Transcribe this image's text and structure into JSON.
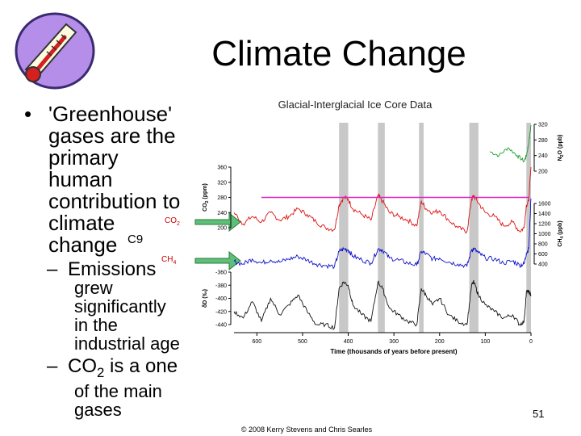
{
  "slide": {
    "title": "Climate Change",
    "bullet_1_line_1": "'Greenhouse'",
    "bullet_1_line_2": "gases are the",
    "bullet_1_line_3": "primary",
    "bullet_1_line_4": "human",
    "bullet_1_line_5": "contribution to",
    "bullet_1_line_6": "climate",
    "bullet_1_line_7": "change",
    "c9_label": "C9",
    "co2_label": "CO",
    "co2_sub": "2",
    "ch4_label": "CH",
    "ch4_sub": "4",
    "sub_1_line_1": "Emissions",
    "sub_1_line_2": "grew",
    "sub_1_line_3": "significantly",
    "sub_1_line_4": "in the",
    "sub_1_line_5": "industrial age",
    "sub_2_line_1": "CO",
    "sub_2_sub": "2",
    "sub_2_line_1b": " is a one",
    "sub_2_line_2": "of the main",
    "sub_2_line_3": "gases",
    "slide_number": "51",
    "copyright": "© 2008 Kerry Stevens and Chris Searles",
    "colors": {
      "arrow": "#5fbf7a",
      "pink": "#e020c0",
      "n2o": "#1a9a30",
      "co2": "#dd1111",
      "ch4": "#1010cc",
      "dD": "#111111",
      "band": "#c8c8c8"
    }
  },
  "chart_data": {
    "type": "line",
    "title": "Glacial-Interglacial Ice Core Data",
    "xlabel": "Time (thousands of years before present)",
    "x_ticks": [
      600,
      500,
      400,
      300,
      200,
      100,
      0
    ],
    "xlim": [
      650,
      0
    ],
    "interglacial_bands_kyr": [
      [
        420,
        400
      ],
      [
        335,
        320
      ],
      [
        245,
        235
      ],
      [
        135,
        115
      ],
      [
        10,
        0
      ]
    ],
    "axes": [
      {
        "label": "N2O (ppb)",
        "label_main": "N",
        "label_sub": "2",
        "label_rest": "O (ppb)",
        "side": "right",
        "ticks": [
          320,
          280,
          240,
          200
        ]
      },
      {
        "label": "CO2 (ppm)",
        "label_main": "CO",
        "label_sub": "2",
        "label_rest": " (ppm)",
        "side": "left",
        "ticks": [
          360,
          320,
          280,
          240,
          200
        ]
      },
      {
        "label": "CH4 (ppb)",
        "label_main": "CH",
        "label_sub": "4",
        "label_rest": " (ppb)",
        "side": "right",
        "ticks": [
          1600,
          1400,
          1200,
          1000,
          800,
          600,
          400
        ]
      },
      {
        "label": "δD (‰)",
        "side": "left",
        "ticks": [
          -360,
          -380,
          -400,
          -420,
          -440
        ]
      }
    ],
    "pink_reference_line_co2_ppm": 280,
    "series": [
      {
        "color_key": "n2o",
        "axis": 0,
        "x": [
          650,
          600,
          560,
          520,
          480,
          440,
          420,
          410,
          400,
          380,
          350,
          320,
          300,
          280,
          260,
          245,
          240,
          220,
          200,
          180,
          160,
          135,
          125,
          110,
          90,
          70,
          50,
          30,
          15,
          10,
          5,
          0
        ],
        "y": [
          null,
          null,
          null,
          null,
          null,
          null,
          null,
          null,
          null,
          null,
          null,
          null,
          null,
          null,
          null,
          null,
          null,
          null,
          null,
          null,
          null,
          null,
          null,
          null,
          250,
          240,
          260,
          240,
          225,
          240,
          270,
          318
        ]
      },
      {
        "color_key": "co2",
        "axis": 1,
        "x": [
          650,
          630,
          610,
          590,
          570,
          550,
          530,
          510,
          490,
          470,
          450,
          430,
          420,
          410,
          400,
          390,
          370,
          350,
          335,
          325,
          310,
          290,
          270,
          250,
          240,
          230,
          215,
          200,
          180,
          160,
          140,
          130,
          125,
          115,
          100,
          80,
          60,
          40,
          25,
          15,
          10,
          5,
          0
        ],
        "y": [
          240,
          210,
          230,
          215,
          240,
          220,
          230,
          250,
          235,
          215,
          200,
          195,
          260,
          280,
          275,
          250,
          235,
          220,
          285,
          270,
          240,
          230,
          220,
          205,
          270,
          250,
          240,
          245,
          220,
          200,
          190,
          275,
          285,
          265,
          240,
          230,
          205,
          215,
          190,
          200,
          260,
          270,
          360
        ]
      },
      {
        "color_key": "ch4",
        "axis": 2,
        "x": [
          650,
          630,
          610,
          590,
          570,
          550,
          530,
          510,
          490,
          470,
          450,
          430,
          420,
          410,
          400,
          390,
          370,
          350,
          335,
          325,
          310,
          290,
          270,
          250,
          240,
          230,
          215,
          200,
          180,
          160,
          140,
          130,
          125,
          115,
          100,
          80,
          60,
          40,
          25,
          15,
          10,
          5,
          0
        ],
        "y": [
          450,
          400,
          500,
          420,
          480,
          440,
          500,
          550,
          480,
          400,
          370,
          350,
          650,
          700,
          680,
          560,
          480,
          420,
          700,
          680,
          520,
          480,
          420,
          380,
          650,
          600,
          500,
          520,
          440,
          400,
          360,
          680,
          700,
          620,
          520,
          500,
          420,
          460,
          380,
          400,
          620,
          700,
          1700
        ]
      },
      {
        "color_key": "dD",
        "axis": 3,
        "x": [
          650,
          630,
          610,
          590,
          570,
          550,
          530,
          510,
          490,
          470,
          450,
          430,
          420,
          410,
          400,
          390,
          370,
          350,
          335,
          325,
          310,
          290,
          270,
          250,
          240,
          230,
          215,
          200,
          180,
          160,
          140,
          130,
          125,
          115,
          100,
          80,
          60,
          40,
          25,
          15,
          10,
          5,
          0
        ],
        "y": [
          -420,
          -430,
          -405,
          -435,
          -400,
          -425,
          -410,
          -395,
          -420,
          -440,
          -440,
          -445,
          -385,
          -375,
          -380,
          -410,
          -425,
          -435,
          -375,
          -385,
          -415,
          -425,
          -435,
          -440,
          -385,
          -395,
          -410,
          -400,
          -425,
          -435,
          -440,
          -380,
          -375,
          -395,
          -410,
          -420,
          -430,
          -425,
          -440,
          -435,
          -390,
          -390,
          -395
        ]
      }
    ]
  }
}
